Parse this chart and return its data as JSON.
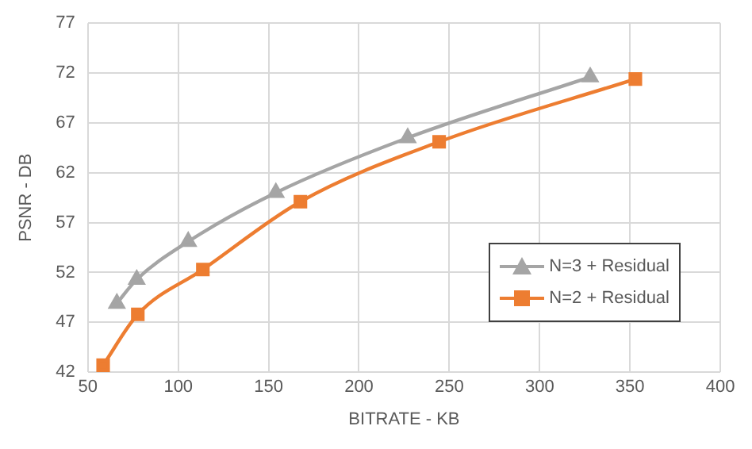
{
  "chart_data": {
    "type": "line",
    "xlabel": "BITRATE - KB",
    "ylabel": "PSNR - DB",
    "xlim": [
      50,
      400
    ],
    "xticks": [
      50,
      100,
      150,
      200,
      250,
      300,
      350,
      400
    ],
    "ylim": [
      42,
      77
    ],
    "yticks": [
      42,
      47,
      52,
      57,
      62,
      67,
      72,
      77
    ],
    "grid": true,
    "legend": "bottom right",
    "line_style": "solid",
    "series": [
      {
        "name": "N=3 + Residual",
        "color": "#a5a5a5",
        "marker": "triangle",
        "x": [
          66,
          77,
          105.5,
          154,
          227,
          328
        ],
        "values": [
          48.9,
          51.3,
          55.1,
          60.0,
          65.5,
          71.6
        ]
      },
      {
        "name": "N=2 + Residual",
        "color": "#ed7d31",
        "marker": "square",
        "x": [
          58.4,
          77.6,
          113.6,
          167.6,
          244.4,
          353
        ],
        "values": [
          42.7,
          47.8,
          52.3,
          59.1,
          65.1,
          71.4
        ]
      }
    ]
  }
}
